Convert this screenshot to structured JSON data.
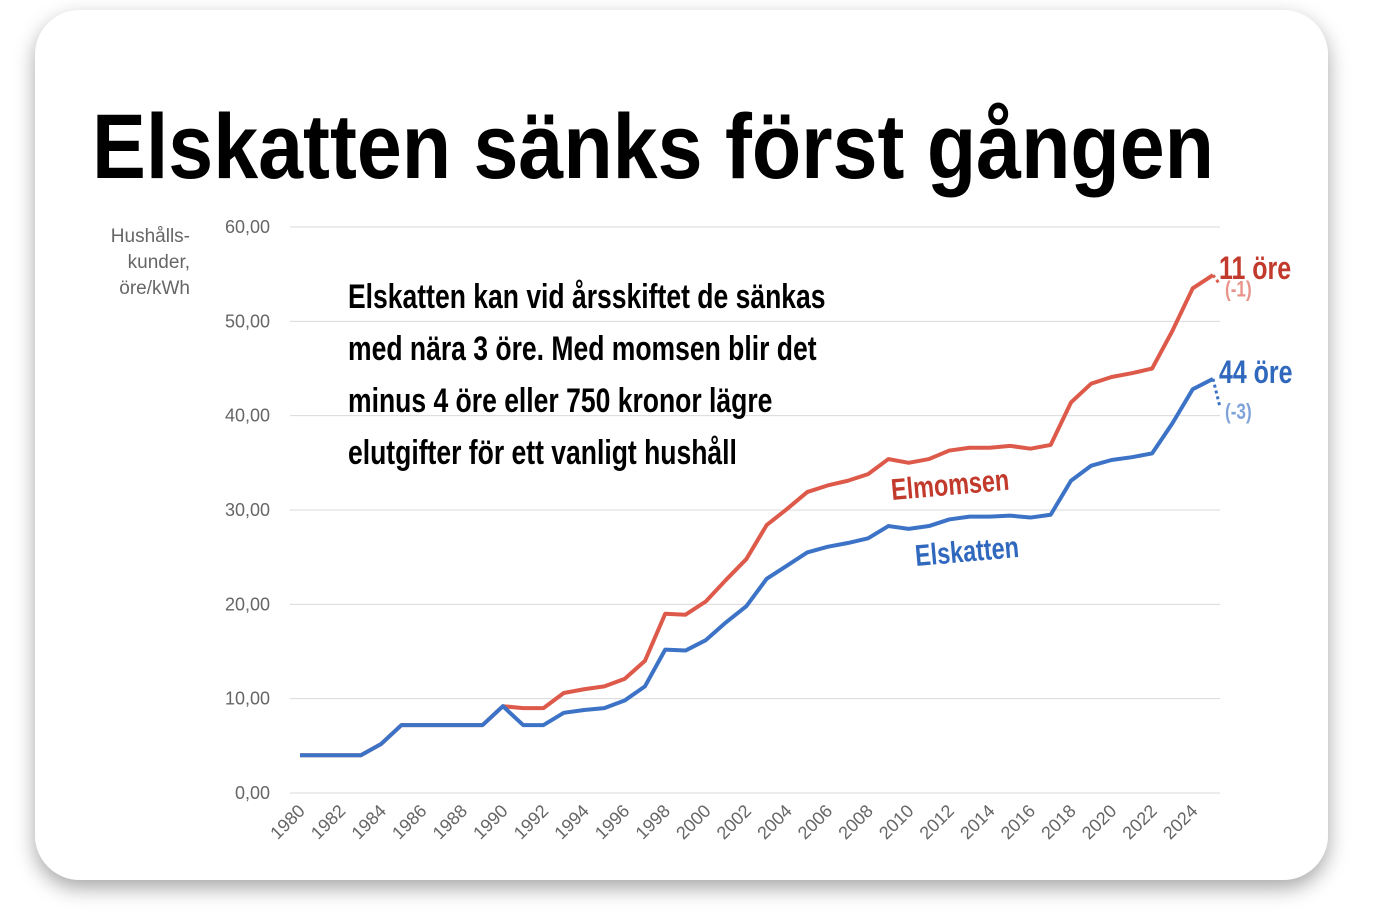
{
  "chart_data": {
    "type": "line",
    "title": "Elskatten sänks först gången",
    "ylabel": [
      "Hushålls-",
      "kunder,",
      "öre/kWh"
    ],
    "annotation": [
      "Elskatten kan vid årsskiftet de sänkas",
      "med nära 3 öre. Med momsen blir det",
      "minus 4 öre eller 750 kronor lägre",
      "elutgifter för ett vanligt hushåll"
    ],
    "x": [
      1980,
      1981,
      1982,
      1983,
      1984,
      1985,
      1986,
      1987,
      1988,
      1989,
      1990,
      1991,
      1992,
      1993,
      1994,
      1995,
      1996,
      1997,
      1998,
      1999,
      2000,
      2001,
      2002,
      2003,
      2004,
      2005,
      2006,
      2007,
      2008,
      2009,
      2010,
      2011,
      2012,
      2013,
      2014,
      2015,
      2016,
      2017,
      2018,
      2019,
      2020,
      2021,
      2022,
      2023,
      2024,
      2025
    ],
    "series": [
      {
        "name": "Elmomsen",
        "color": "#dd5a4b",
        "label_color": "#c23a2c",
        "end_label": "11 öre",
        "change_label": "(-1)",
        "change": -1,
        "values": [
          4.0,
          4.0,
          4.0,
          4.0,
          5.2,
          7.2,
          7.2,
          7.2,
          7.2,
          7.2,
          9.2,
          9.0,
          9.0,
          10.6,
          11.0,
          11.3,
          12.1,
          14.0,
          19.0,
          18.9,
          20.3,
          22.6,
          24.8,
          28.4,
          30.1,
          31.9,
          32.6,
          33.1,
          33.8,
          35.4,
          35.0,
          35.4,
          36.3,
          36.6,
          36.6,
          36.8,
          36.5,
          36.9,
          41.4,
          43.4,
          44.1,
          44.5,
          45.0,
          49.0,
          53.5,
          54.9
        ]
      },
      {
        "name": "Elskatten",
        "color": "#3c73c6",
        "label_color": "#2f68bd",
        "end_label": "44 öre",
        "change_label": "(-3)",
        "change": -3,
        "values": [
          4.0,
          4.0,
          4.0,
          4.0,
          5.2,
          7.2,
          7.2,
          7.2,
          7.2,
          7.2,
          9.2,
          7.2,
          7.2,
          8.5,
          8.8,
          9.0,
          9.8,
          11.3,
          15.2,
          15.1,
          16.2,
          18.1,
          19.8,
          22.7,
          24.1,
          25.5,
          26.1,
          26.5,
          27.0,
          28.3,
          28.0,
          28.3,
          29.0,
          29.3,
          29.3,
          29.4,
          29.2,
          29.5,
          33.1,
          34.7,
          35.3,
          35.6,
          36.0,
          39.2,
          42.8,
          43.9
        ]
      }
    ],
    "xlim": [
      1980,
      2025
    ],
    "xticks": [
      1980,
      1982,
      1984,
      1986,
      1988,
      1990,
      1992,
      1994,
      1996,
      1998,
      2000,
      2002,
      2004,
      2006,
      2008,
      2010,
      2012,
      2014,
      2016,
      2018,
      2020,
      2022,
      2024
    ],
    "ylim": [
      0,
      60
    ],
    "yticks": [
      {
        "value": 0,
        "label": "0,00"
      },
      {
        "value": 10,
        "label": "10,00"
      },
      {
        "value": 20,
        "label": "20,00"
      },
      {
        "value": 30,
        "label": "30,00"
      },
      {
        "value": 40,
        "label": "40,00"
      },
      {
        "value": 50,
        "label": "50,00"
      },
      {
        "value": 60,
        "label": "60,00"
      }
    ],
    "grid": true
  }
}
